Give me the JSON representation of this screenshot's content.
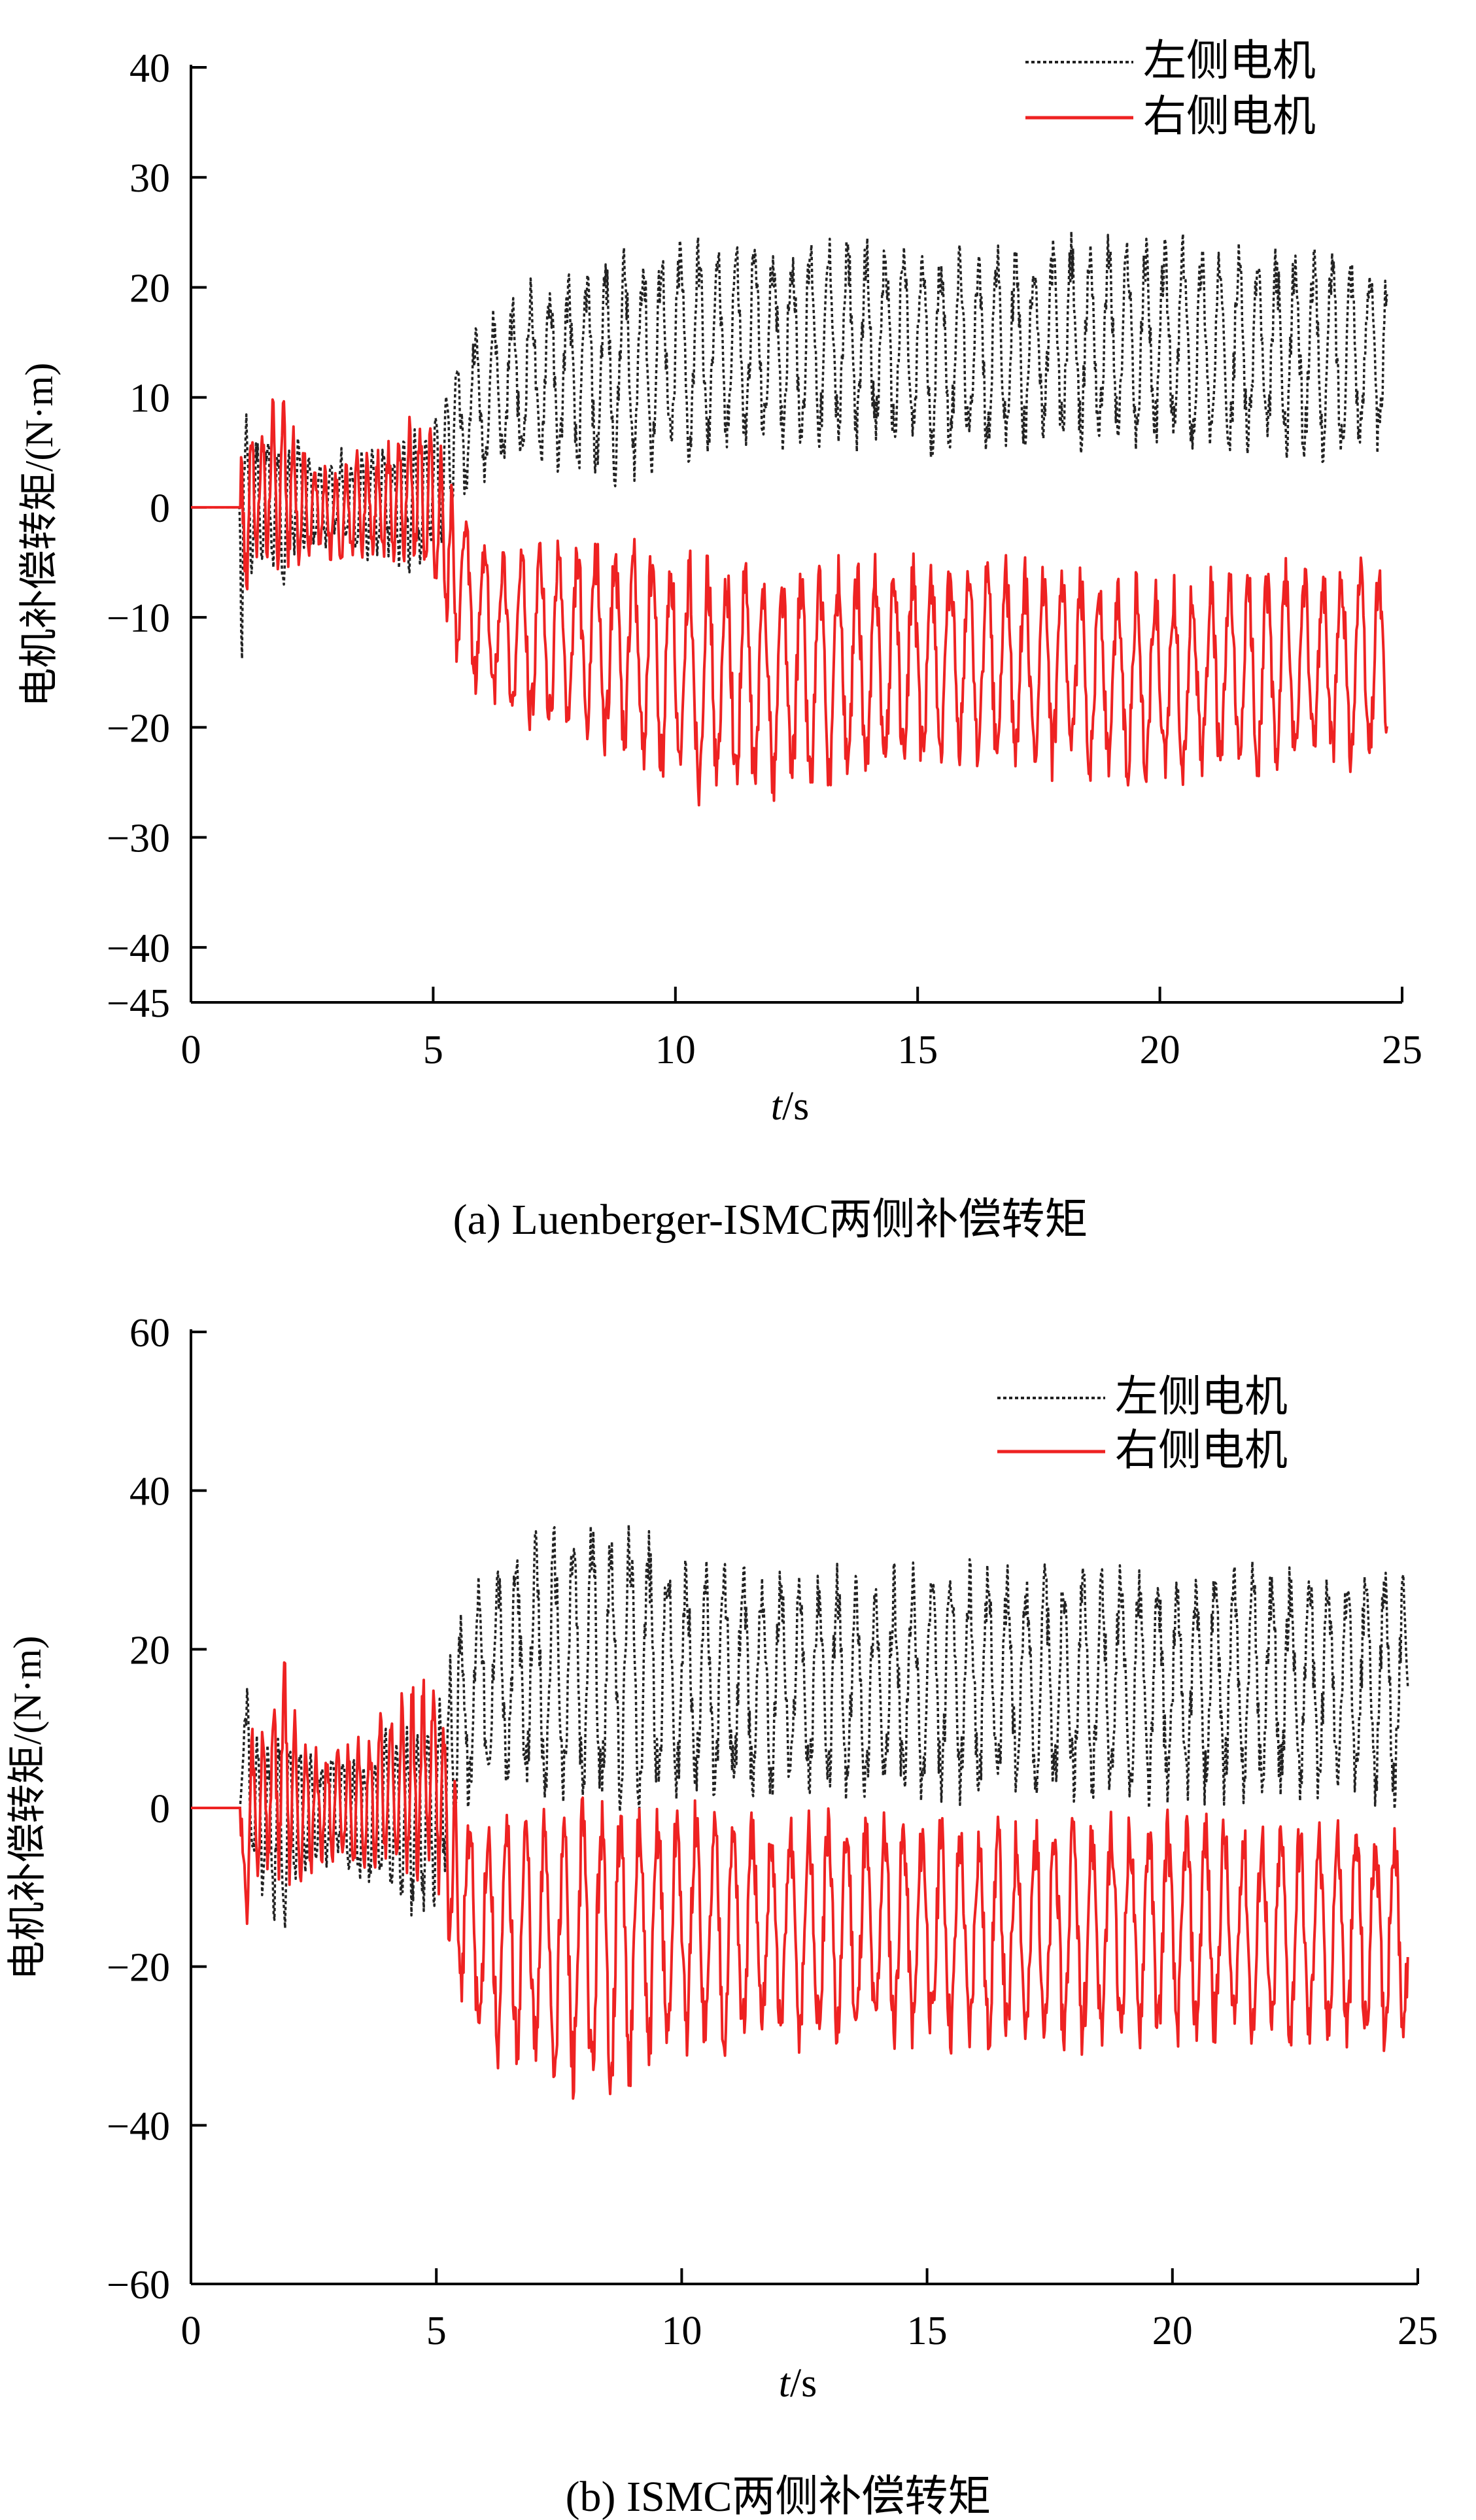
{
  "chart_data": [
    {
      "type": "line",
      "caption": "(a) Luenberger-ISMC两侧补偿转矩",
      "xlabel_italic": "t",
      "xlabel_unit": "/s",
      "ylabel": "电机补偿转矩/(N·m)",
      "xlim": [
        0,
        25
      ],
      "ylim": [
        -45,
        40
      ],
      "xticks": [
        "0",
        "5",
        "10",
        "15",
        "20",
        "25"
      ],
      "yticks": [
        "40",
        "30",
        "20",
        "10",
        "0",
        "−10",
        "−20",
        "−30",
        "−40",
        "−45"
      ],
      "legend_position": "top-right",
      "series": [
        {
          "name": "左侧电机",
          "color": "#222222",
          "style": "dotted",
          "x": [
            0,
            1,
            1.05,
            1.1,
            1.3,
            1.6,
            1.9,
            2.2,
            2.6,
            3.0,
            3.5,
            4.0,
            4.5,
            5.0,
            5.3,
            5.6,
            6.0,
            6.5,
            7.0,
            8.0,
            9.0,
            10.0,
            12.0,
            14.0,
            16.0,
            18.0,
            20.0,
            22.0,
            24.0,
            24.7
          ],
          "y_center": [
            0,
            0,
            2,
            1,
            0,
            1,
            -2,
            2,
            0,
            1,
            0,
            1,
            0,
            2,
            5,
            8,
            10,
            11,
            12,
            12,
            13,
            14,
            15,
            15,
            14,
            15,
            15,
            14,
            14,
            14
          ],
          "y_amplitude": [
            0,
            0,
            18,
            8,
            6,
            7,
            6,
            5,
            4,
            4,
            5,
            5,
            6,
            6,
            7,
            7,
            7,
            7,
            8,
            9,
            10,
            10,
            9,
            9,
            9,
            9,
            9,
            9,
            9,
            9
          ]
        },
        {
          "name": "右侧电机",
          "color": "#ee2222",
          "style": "solid",
          "x": [
            0,
            1,
            1.05,
            1.1,
            1.3,
            1.6,
            1.9,
            2.2,
            2.6,
            3.0,
            3.5,
            4.0,
            4.5,
            5.0,
            5.3,
            5.6,
            6.0,
            6.5,
            7.0,
            8.0,
            9.0,
            10.0,
            12.0,
            14.0,
            16.0,
            18.0,
            20.0,
            22.0,
            24.0,
            24.7
          ],
          "y_center": [
            0,
            0,
            -8,
            0,
            1,
            2,
            3,
            0,
            0,
            -1,
            0,
            0,
            2,
            0,
            -4,
            -8,
            -10,
            -11,
            -12,
            -12,
            -13,
            -15,
            -16,
            -15,
            -14,
            -15,
            -16,
            -15,
            -14,
            -14
          ],
          "y_amplitude": [
            0,
            0,
            14,
            9,
            6,
            7,
            8,
            6,
            4,
            4,
            5,
            5,
            7,
            7,
            7,
            7,
            7,
            7,
            8,
            9,
            10,
            11,
            10,
            10,
            9,
            9,
            9,
            9,
            9,
            9
          ]
        }
      ]
    },
    {
      "type": "line",
      "caption": "(b) ISMC两侧补偿转矩",
      "xlabel_italic": "t",
      "xlabel_unit": "/s",
      "ylabel": "电机补偿转矩/(N·m)",
      "xlim": [
        0,
        25
      ],
      "ylim": [
        -60,
        60
      ],
      "xticks": [
        "0",
        "5",
        "10",
        "15",
        "20",
        "25"
      ],
      "yticks": [
        "60",
        "40",
        "20",
        "0",
        "−20",
        "−40",
        "−60"
      ],
      "legend_position": "top-right",
      "series": [
        {
          "name": "左侧电机",
          "color": "#222222",
          "style": "dotted",
          "x": [
            0,
            1,
            1.05,
            1.1,
            1.3,
            1.6,
            1.9,
            2.2,
            2.6,
            3.0,
            3.5,
            4.0,
            4.5,
            5.0,
            5.3,
            5.6,
            6.0,
            6.5,
            7.0,
            8.0,
            9.0,
            10.0,
            12.0,
            14.0,
            16.0,
            18.0,
            20.0,
            22.0,
            24.0,
            24.8
          ],
          "y_center": [
            0,
            0,
            20,
            5,
            0,
            -2,
            -4,
            0,
            0,
            0,
            -2,
            0,
            -2,
            0,
            8,
            14,
            16,
            17,
            17,
            18,
            18,
            16,
            16,
            15,
            16,
            16,
            15,
            16,
            16,
            15
          ],
          "y_amplitude": [
            0,
            0,
            26,
            12,
            10,
            10,
            14,
            9,
            7,
            7,
            8,
            10,
            12,
            12,
            12,
            14,
            15,
            15,
            16,
            18,
            17,
            15,
            14,
            14,
            14,
            14,
            14,
            14,
            14,
            14
          ]
        },
        {
          "name": "右侧电机",
          "color": "#ee2222",
          "style": "solid",
          "x": [
            0,
            1,
            1.05,
            1.1,
            1.3,
            1.6,
            1.9,
            2.2,
            2.6,
            3.0,
            3.5,
            4.0,
            4.5,
            5.0,
            5.3,
            5.6,
            6.0,
            6.5,
            7.0,
            8.0,
            9.0,
            10.0,
            12.0,
            14.0,
            16.0,
            18.0,
            20.0,
            22.0,
            24.0,
            24.8
          ],
          "y_center": [
            0,
            0,
            -22,
            -5,
            0,
            2,
            6,
            0,
            0,
            0,
            1,
            2,
            3,
            5,
            -8,
            -14,
            -16,
            -17,
            -17,
            -18,
            -17,
            -15,
            -16,
            -15,
            -16,
            -16,
            -15,
            -16,
            -16,
            -15
          ],
          "y_amplitude": [
            0,
            0,
            24,
            12,
            10,
            10,
            14,
            9,
            7,
            7,
            8,
            10,
            12,
            13,
            12,
            14,
            15,
            15,
            16,
            18,
            17,
            15,
            14,
            14,
            14,
            14,
            14,
            14,
            14,
            14
          ]
        }
      ]
    }
  ]
}
